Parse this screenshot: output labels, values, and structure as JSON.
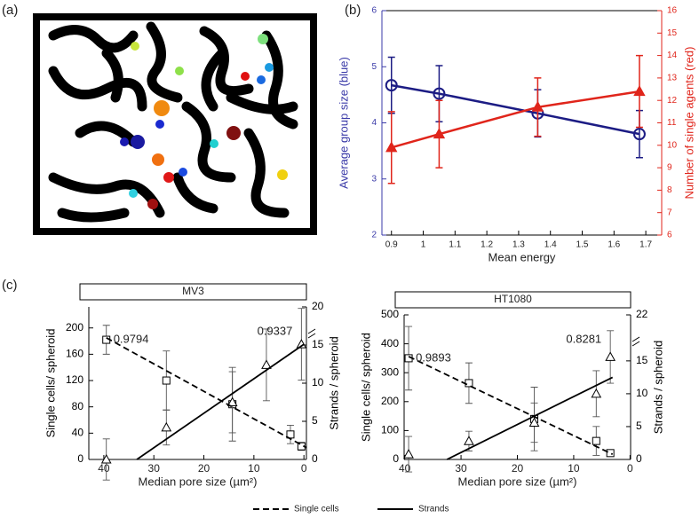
{
  "panel_labels": [
    "(a)",
    "(b)",
    "(c)"
  ],
  "chart_data": [
    {
      "type": "line",
      "x_label": "Mean energy",
      "y_label": "Average group size (blue)",
      "y2_label": "Number of single agents (red)",
      "x": [
        0.9,
        1.05,
        1.36,
        1.68
      ],
      "series": [
        {
          "color": "#1c1c84",
          "axis": "y",
          "marker": "circle",
          "values": [
            4.67,
            4.52,
            4.17,
            3.8
          ],
          "errors": [
            0.5,
            0.5,
            0.42,
            0.42
          ]
        },
        {
          "color": "#e0251b",
          "axis": "y2",
          "marker": "triangle",
          "values": [
            9.9,
            10.5,
            11.7,
            12.4
          ],
          "errors": [
            1.6,
            1.5,
            1.3,
            1.6
          ]
        }
      ],
      "xlim": [
        0.87,
        1.75
      ],
      "xticks": [
        0.9,
        1,
        1.1,
        1.2,
        1.3,
        1.4,
        1.5,
        1.6,
        1.7
      ],
      "ylim": [
        2,
        6
      ],
      "yticks": [
        2,
        3,
        4,
        5,
        6
      ],
      "y_color": "#3a3aa8",
      "y2lim": [
        6,
        16
      ],
      "y2ticks": [
        6,
        7,
        8,
        9,
        10,
        11,
        12,
        13,
        14,
        15,
        16
      ],
      "y2_color": "#e0251b"
    },
    {
      "type": "scatter",
      "title": "MV3",
      "x_label": "Median pore size (µm²)",
      "y_label": "Single cells/ spheroid",
      "y2_label": "Strands / spheroid",
      "annotations": [
        "0.9794",
        "0.9337"
      ],
      "series": [
        {
          "marker": "square",
          "axis": "y",
          "color": "#000000",
          "x": [
            39.5,
            27.5,
            14.3,
            2.7,
            0.5
          ],
          "values": [
            182,
            120,
            84,
            38,
            20
          ],
          "errors": [
            22,
            45,
            56,
            14,
            6
          ]
        },
        {
          "marker": "triangle",
          "axis": "y2",
          "color": "#000000",
          "x": [
            39.5,
            27.5,
            14.3,
            7.5,
            0.5
          ],
          "values": [
            0,
            4.2,
            7.5,
            12.4,
            15.1
          ],
          "errors": [
            2.7,
            2.3,
            4,
            4.7,
            4.7
          ]
        },
        {
          "style": "dashed",
          "axis": "y",
          "color": "#000000",
          "x": [
            39.5,
            -0.5
          ],
          "values": [
            185,
            18
          ]
        },
        {
          "style": "solid",
          "axis": "y2",
          "color": "#000000",
          "x": [
            33.4,
            0
          ],
          "values": [
            0,
            15.1
          ]
        }
      ],
      "xlim": [
        43,
        -0.5
      ],
      "xticks": [
        40,
        30,
        20,
        10,
        0
      ],
      "ylim": [
        0,
        232
      ],
      "yticks": [
        0,
        40,
        80,
        120,
        160,
        200
      ],
      "y2lim": [
        0,
        20
      ],
      "y2ticks": [
        0,
        5,
        10,
        15,
        20
      ]
    },
    {
      "type": "scatter",
      "title": "HT1080",
      "x_label": "Median pore size (µm²)",
      "y_label": "Single cells/ spheroid",
      "y2_label": "Strands / spheroid",
      "annotations": [
        "0.9893",
        "0.8281"
      ],
      "series": [
        {
          "marker": "square",
          "axis": "y",
          "color": "#000000",
          "x": [
            39.3,
            28.6,
            17,
            6,
            3.5
          ],
          "values": [
            350,
            264,
            140,
            64,
            22
          ],
          "errors": [
            110,
            70,
            110,
            50,
            10
          ]
        },
        {
          "marker": "triangle",
          "axis": "y2",
          "color": "#000000",
          "x": [
            39.3,
            28.6,
            17,
            6,
            3.5
          ],
          "values": [
            0.8,
            2.8,
            5.6,
            10,
            15.6
          ],
          "errors": [
            2.7,
            1.5,
            3,
            3.5,
            4
          ]
        },
        {
          "style": "dashed",
          "axis": "y",
          "color": "#000000",
          "x": [
            39.3,
            3.1
          ],
          "values": [
            356,
            18
          ]
        },
        {
          "style": "solid",
          "axis": "y2",
          "color": "#000000",
          "x": [
            32.5,
            3.1
          ],
          "values": [
            0,
            12.5
          ]
        }
      ],
      "xlim": [
        40.1,
        -0.1
      ],
      "xticks": [
        40,
        30,
        20,
        10,
        0
      ],
      "ylim": [
        0,
        500
      ],
      "yticks": [
        0,
        100,
        200,
        300,
        400,
        500
      ],
      "y2lim": [
        0,
        22
      ],
      "y2ticks": [
        0,
        5,
        10,
        15,
        22
      ]
    }
  ],
  "legend": [
    {
      "name": "Single cells",
      "style": "dashed"
    },
    {
      "name": "Strands",
      "style": "solid"
    }
  ]
}
